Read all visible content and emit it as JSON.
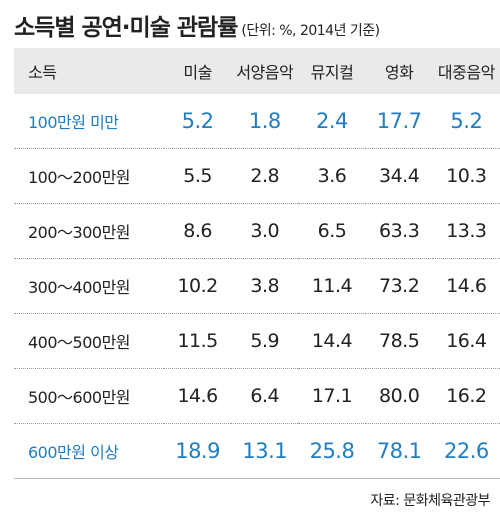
{
  "header": {
    "title": "소득별 공연·미술 관람률",
    "subtitle": "(단위: %, 2014년 기준)"
  },
  "table": {
    "columns": [
      "소득",
      "미술",
      "서양음악",
      "뮤지컬",
      "영화",
      "대중음악"
    ],
    "rows": [
      [
        "100만원 미만",
        "5.2",
        "1.8",
        "2.4",
        "17.7",
        "5.2"
      ],
      [
        "100～200만원",
        "5.5",
        "2.8",
        "3.6",
        "34.4",
        "10.3"
      ],
      [
        "200～300만원",
        "8.6",
        "3.0",
        "6.5",
        "63.3",
        "13.3"
      ],
      [
        "300～400만원",
        "10.2",
        "3.8",
        "11.4",
        "73.2",
        "14.6"
      ],
      [
        "400～500만원",
        "11.5",
        "5.9",
        "14.4",
        "78.5",
        "16.4"
      ],
      [
        "500～600만원",
        "14.6",
        "6.4",
        "17.1",
        "80.0",
        "16.2"
      ],
      [
        "600만원 이상",
        "18.9",
        "13.1",
        "25.8",
        "78.1",
        "22.6"
      ]
    ],
    "highlight_rows": [
      0,
      6
    ]
  },
  "footer": {
    "source": "자료: 문화체육관광부"
  }
}
